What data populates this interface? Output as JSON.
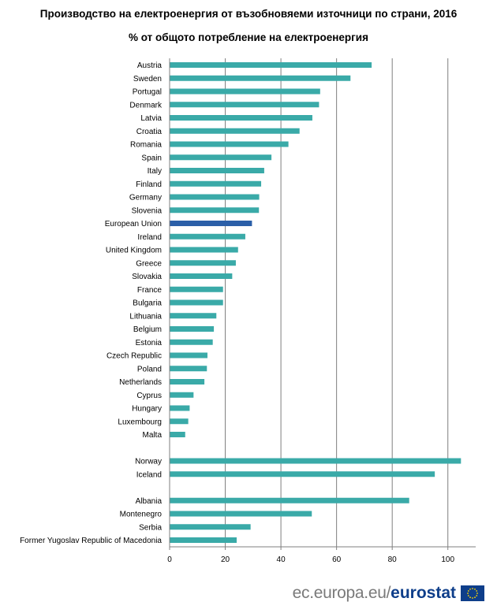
{
  "title": "Производство на електроенергия от възобновяеми източници по страни, 2016",
  "subtitle": "% от общото потребление на електроенергия",
  "footer": {
    "site": "ec.europa.eu/",
    "brand": "eurostat"
  },
  "colors": {
    "bar": "#3aaaa8",
    "highlight": "#2b5fa8",
    "grid": "#7f7f7f",
    "axis": "#7f7f7f",
    "flag_blue": "#0e3e8a",
    "flag_star": "#ffd700"
  },
  "chart_data": {
    "type": "bar",
    "orientation": "horizontal",
    "title": "Производство на електроенергия от възобновяеми източници по страни, 2016",
    "subtitle": "% от общото потребление на електроенергия",
    "categories": [
      "Austria",
      "Sweden",
      "Portugal",
      "Denmark",
      "Latvia",
      "Croatia",
      "Romania",
      "Spain",
      "Italy",
      "Finland",
      "Germany",
      "Slovenia",
      "European Union",
      "Ireland",
      "United Kingdom",
      "Greece",
      "Slovakia",
      "France",
      "Bulgaria",
      "Lithuania",
      "Belgium",
      "Estonia",
      "Czech Republic",
      "Poland",
      "Netherlands",
      "Cyprus",
      "Hungary",
      "Luxembourg",
      "Malta",
      "",
      "Norway",
      "Iceland",
      "",
      "Albania",
      "Montenegro",
      "Serbia",
      "Former Yugoslav Republic of Macedonia"
    ],
    "values": [
      72.6,
      65.0,
      54.1,
      53.7,
      51.3,
      46.7,
      42.7,
      36.6,
      34.0,
      32.9,
      32.2,
      32.1,
      29.6,
      27.2,
      24.6,
      23.8,
      22.5,
      19.2,
      19.2,
      16.8,
      15.9,
      15.5,
      13.6,
      13.4,
      12.5,
      8.6,
      7.2,
      6.7,
      5.6,
      null,
      104.7,
      95.3,
      null,
      86.1,
      51.1,
      29.1,
      24.1
    ],
    "highlight": [
      "European Union"
    ],
    "xlim": [
      0,
      110
    ],
    "xticks": [
      0,
      20,
      40,
      60,
      80,
      100
    ],
    "grid": true,
    "xlabel": "",
    "ylabel": ""
  }
}
